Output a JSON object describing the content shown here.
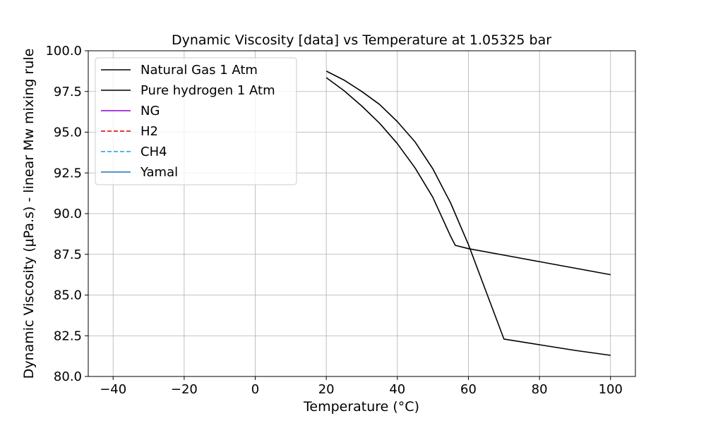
{
  "chart_data": {
    "type": "line",
    "title": "Dynamic Viscosity [data] vs Temperature at 1.05325 bar",
    "xlabel": "Temperature (°C)",
    "ylabel": "Dynamic Viscosity (μPa.s) - linear Mw mixing rule",
    "xlim": [
      -47,
      107
    ],
    "ylim": [
      80.0,
      100.0
    ],
    "xticks": [
      -40,
      -20,
      0,
      20,
      40,
      60,
      80,
      100
    ],
    "xtick_labels": [
      "−40",
      "−20",
      "0",
      "20",
      "40",
      "60",
      "80",
      "100"
    ],
    "yticks": [
      80.0,
      82.5,
      85.0,
      87.5,
      90.0,
      92.5,
      95.0,
      97.5,
      100.0
    ],
    "ytick_labels": [
      "80.0",
      "82.5",
      "85.0",
      "87.5",
      "90.0",
      "92.5",
      "95.0",
      "97.5",
      "100.0"
    ],
    "grid": true,
    "legend_position": "top-left",
    "series": [
      {
        "name": "Natural Gas  1 Atm",
        "color": "#000000",
        "dash": "solid",
        "x": [
          20,
          25,
          30,
          35,
          40,
          45,
          50,
          55,
          56.3,
          60,
          70,
          80,
          90,
          100
        ],
        "y": [
          98.35,
          97.55,
          96.6,
          95.55,
          94.3,
          92.8,
          91.0,
          88.6,
          88.05,
          87.85,
          87.45,
          87.05,
          86.65,
          86.25
        ]
      },
      {
        "name": "Pure hydrogen 1 Atm",
        "color": "#000000",
        "dash": "solid",
        "x": [
          20,
          25,
          30,
          35,
          40,
          45,
          50,
          55,
          60,
          65,
          70,
          80,
          90,
          100
        ],
        "y": [
          98.75,
          98.2,
          97.5,
          96.7,
          95.65,
          94.4,
          92.75,
          90.65,
          88.1,
          85.2,
          82.3,
          81.95,
          81.6,
          81.3
        ]
      },
      {
        "name": "NG",
        "color": "#9400d3",
        "dash": "solid",
        "x": [],
        "y": []
      },
      {
        "name": "H2",
        "color": "#d40000",
        "dash": "dashed",
        "x": [],
        "y": []
      },
      {
        "name": "CH4",
        "color": "#1aa0d8",
        "dash": "dashed",
        "x": [],
        "y": []
      },
      {
        "name": "Yamal",
        "color": "#1f77b4",
        "dash": "solid",
        "x": [],
        "y": []
      }
    ]
  }
}
